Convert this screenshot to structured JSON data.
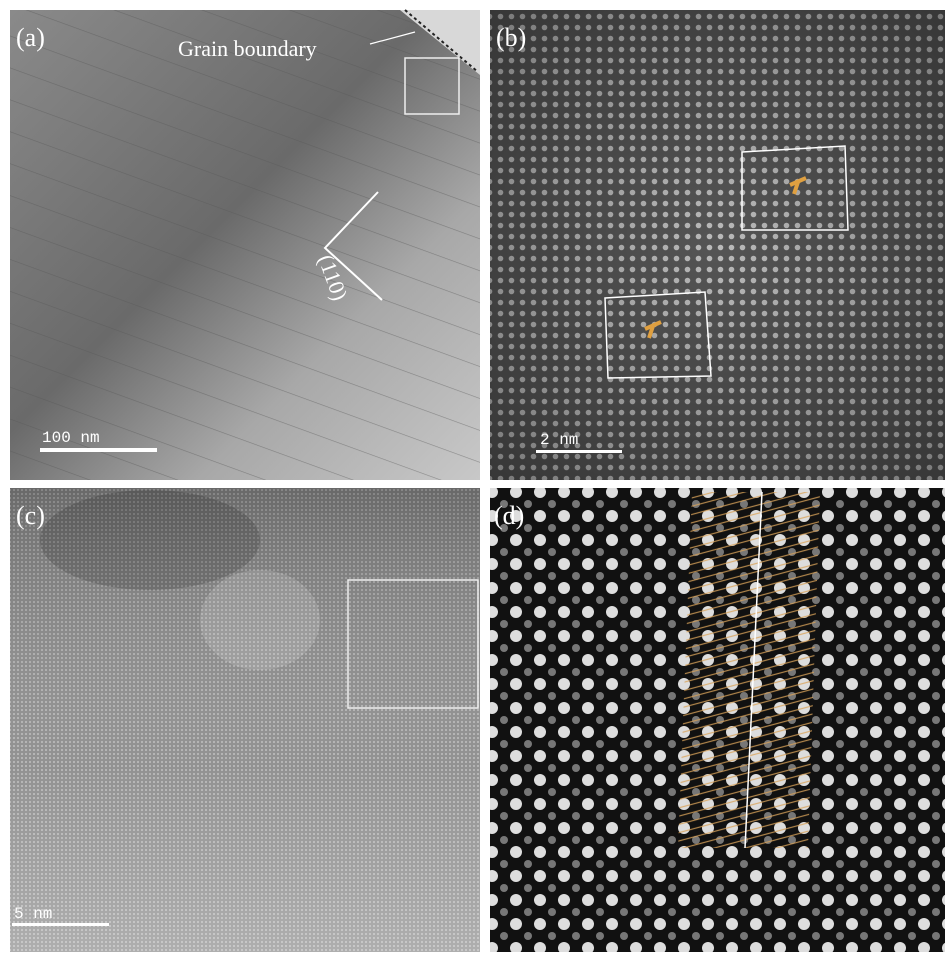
{
  "panels": [
    {
      "label": "(a)",
      "annotations": [
        "Grain boundary",
        "(110)"
      ],
      "scale_bar": "100 nm"
    },
    {
      "label": "(b)",
      "scale_bar": "2 nm"
    },
    {
      "label": "(c)",
      "scale_bar": "5 nm"
    },
    {
      "label": "(d)"
    }
  ]
}
